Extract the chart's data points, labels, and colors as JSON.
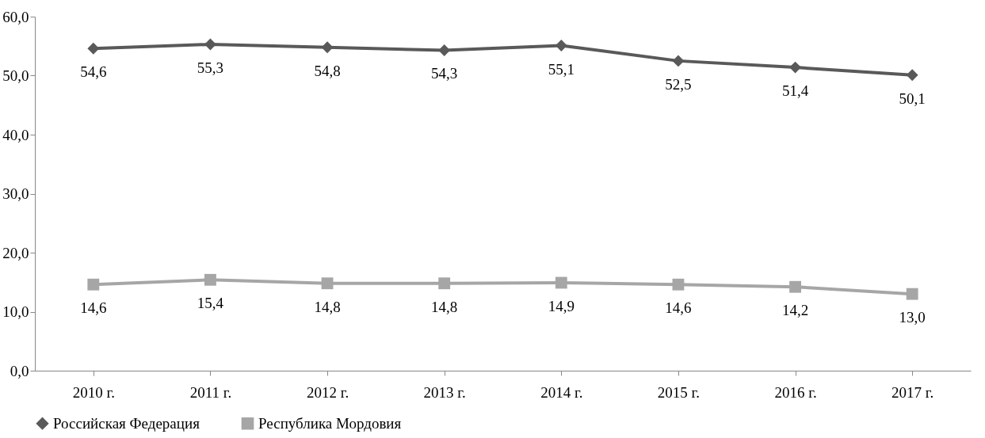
{
  "chart_data": {
    "type": "line",
    "categories": [
      "2010 г.",
      "2011 г.",
      "2012 г.",
      "2013 г.",
      "2014 г.",
      "2015 г.",
      "2016 г.",
      "2017 г."
    ],
    "series": [
      {
        "name": "Российская Федерация",
        "color": "#595959",
        "marker": "diamond",
        "values": [
          54.6,
          55.3,
          54.8,
          54.3,
          55.1,
          52.5,
          51.4,
          50.1
        ],
        "value_labels": [
          "54,6",
          "55,3",
          "54,8",
          "54,3",
          "55,1",
          "52,5",
          "51,4",
          "50,1"
        ]
      },
      {
        "name": "Республика Мордовия",
        "color": "#a6a6a6",
        "marker": "square",
        "values": [
          14.6,
          15.4,
          14.8,
          14.8,
          14.9,
          14.6,
          14.2,
          13.0
        ],
        "value_labels": [
          "14,6",
          "15,4",
          "14,8",
          "14,8",
          "14,9",
          "14,6",
          "14,2",
          "13,0"
        ]
      }
    ],
    "ylim": [
      0,
      60
    ],
    "yticks": [
      {
        "value": 0,
        "label": "0,0"
      },
      {
        "value": 10,
        "label": "10,0"
      },
      {
        "value": 20,
        "label": "20,0"
      },
      {
        "value": 30,
        "label": "30,0"
      },
      {
        "value": 40,
        "label": "40,0"
      },
      {
        "value": 50,
        "label": "50,0"
      },
      {
        "value": 60,
        "label": "60,0"
      }
    ],
    "grid": false,
    "legend": "bottom"
  }
}
